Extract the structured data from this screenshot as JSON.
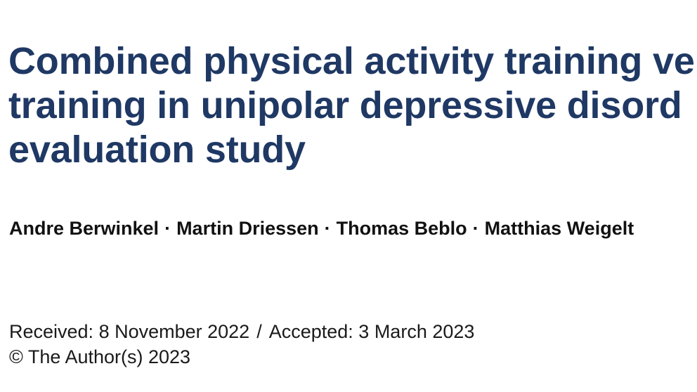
{
  "article": {
    "title_lines": [
      "Combined physical activity training ve",
      "training in unipolar depressive disord",
      "evaluation study"
    ],
    "authors": [
      "Andre Berwinkel",
      "Martin Driessen",
      "Thomas Beblo",
      "Matthias Weigelt"
    ],
    "author_separator": "·",
    "received": "Received: 8 November 2022",
    "date_separator": "/",
    "accepted": "Accepted: 3 March 2023",
    "copyright": "© The Author(s) 2023"
  },
  "colors": {
    "title": "#1f3864",
    "text": "#111111",
    "background": "#ffffff"
  }
}
